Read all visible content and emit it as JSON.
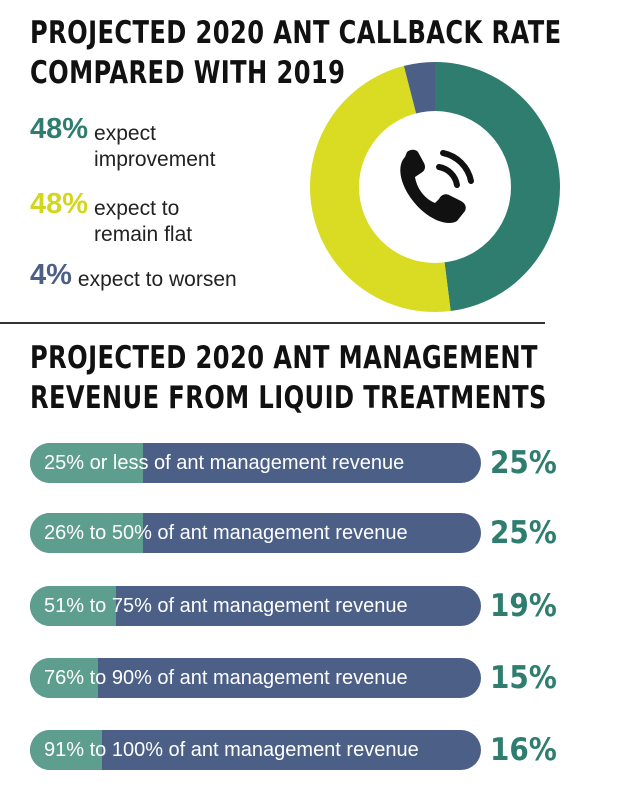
{
  "colors": {
    "improve": "#2e7d6f",
    "flat": "#d9dc22",
    "worsen": "#4c5f87",
    "bar_track": "#4c5f87",
    "bar_fill": "#5e9e8f"
  },
  "section1": {
    "title_line1": "PROJECTED 2020 ANT CALLBACK RATE",
    "title_line2": "COMPARED WITH 2019",
    "center_icon": "phone-ringing-icon"
  },
  "section2": {
    "title_line1": "PROJECTED 2020 ANT MANAGEMENT",
    "title_line2": "REVENUE FROM LIQUID TREATMENTS"
  },
  "chart_data": [
    {
      "type": "pie",
      "labels": [
        "expect improvement",
        "expect to remain flat",
        "expect to worsen"
      ],
      "values": [
        48,
        48,
        4
      ],
      "value_labels": [
        "48%",
        "48%",
        "4%"
      ],
      "legend_lines": [
        [
          "expect",
          "improvement"
        ],
        [
          "expect to",
          "remain flat"
        ],
        [
          "expect to worsen"
        ]
      ]
    },
    {
      "type": "bar",
      "categories": [
        "25% or less of ant management revenue",
        "26% to 50% of ant management revenue",
        "51% to 75% of ant management revenue",
        "76% to 90% of ant management revenue",
        "91% to 100% of ant management revenue"
      ],
      "values": [
        25,
        25,
        19,
        15,
        16
      ],
      "value_labels": [
        "25%",
        "25%",
        "19%",
        "15%",
        "16%"
      ]
    }
  ]
}
